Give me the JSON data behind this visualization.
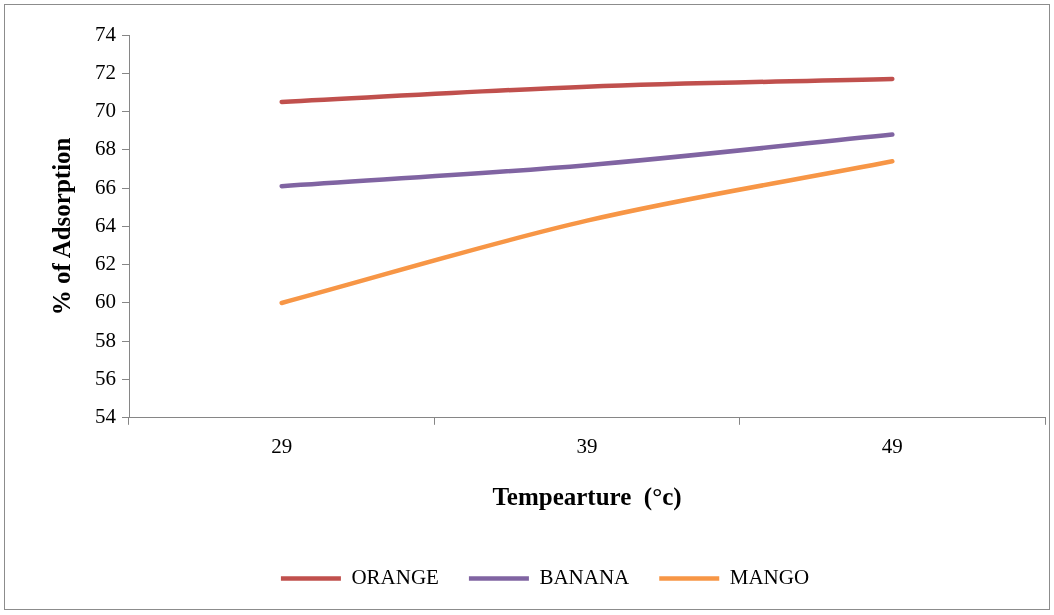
{
  "chart_data": {
    "type": "line",
    "xlabel": "Tempearture  (°c)",
    "ylabel": "% of Adsorption",
    "categories": [
      "29",
      "39",
      "49"
    ],
    "series": [
      {
        "name": "ORANGE",
        "color": "#c0504d",
        "values": [
          70.5,
          71.3,
          71.7
        ]
      },
      {
        "name": "BANANA",
        "color": "#8064a2",
        "values": [
          66.1,
          67.2,
          68.8
        ]
      },
      {
        "name": "MANGO",
        "color": "#f79646",
        "values": [
          60.0,
          64.3,
          67.4
        ]
      }
    ],
    "ylim": [
      54,
      74
    ],
    "yticks": [
      54,
      56,
      58,
      60,
      62,
      64,
      66,
      68,
      70,
      72,
      74
    ],
    "grid": false,
    "legend": "bottom",
    "marker": "none",
    "line_style": "solid"
  }
}
